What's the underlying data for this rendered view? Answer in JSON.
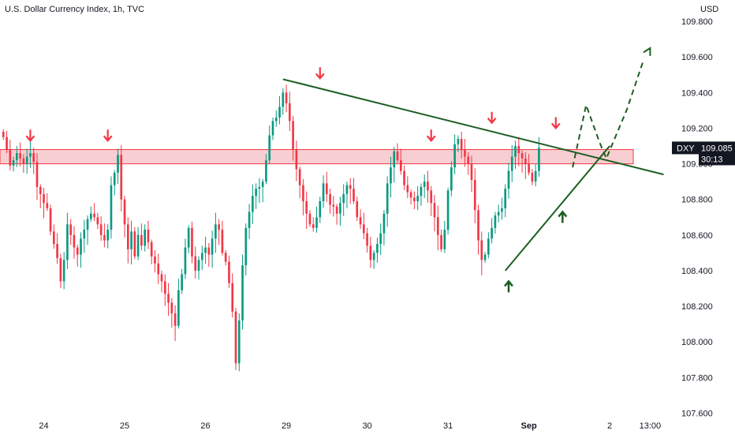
{
  "title": "U.S. Dollar Currency Index, 1h, TVC",
  "chart_data": {
    "type": "candlestick",
    "title": "U.S. Dollar Currency Index, 1h, TVC",
    "ylabel": "USD",
    "ylim": [
      107.58,
      109.92
    ],
    "y_ticks": [
      "109.800",
      "109.600",
      "109.400",
      "109.200",
      "109.000",
      "108.800",
      "108.600",
      "108.400",
      "108.200",
      "108.000",
      "107.800",
      "107.600"
    ],
    "y_tick_values": [
      109.8,
      109.6,
      109.4,
      109.2,
      109.0,
      108.8,
      108.6,
      108.4,
      108.2,
      108.0,
      107.8,
      107.6
    ],
    "x_ticks": [
      {
        "label": "24",
        "i": 12,
        "bold": false
      },
      {
        "label": "25",
        "i": 36,
        "bold": false
      },
      {
        "label": "26",
        "i": 60,
        "bold": false
      },
      {
        "label": "29",
        "i": 84,
        "bold": false
      },
      {
        "label": "30",
        "i": 108,
        "bold": false
      },
      {
        "label": "31",
        "i": 132,
        "bold": false
      },
      {
        "label": "Sep",
        "i": 156,
        "bold": true
      },
      {
        "label": "2",
        "i": 180,
        "bold": false
      },
      {
        "label": "13:00",
        "i": 192,
        "bold": false
      }
    ],
    "x_range": [
      -1,
      198
    ],
    "colors": {
      "up": "#089981",
      "down": "#f23645",
      "trend": "#1b5e20",
      "zone_fill": "#f6c6c9",
      "zone_edge": "#f23645",
      "badge": "#131722",
      "arrow_red": "#f23645",
      "arrow_green": "#1b5e20"
    },
    "closes": [
      109.15,
      109.08,
      108.99,
      109.02,
      109.06,
      109.03,
      109.0,
      109.04,
      109.06,
      109.01,
      108.87,
      108.83,
      108.78,
      108.75,
      108.62,
      108.55,
      108.47,
      108.34,
      108.46,
      108.66,
      108.6,
      108.53,
      108.49,
      108.58,
      108.63,
      108.69,
      108.72,
      108.7,
      108.66,
      108.6,
      108.57,
      108.63,
      108.88,
      108.95,
      109.05,
      108.8,
      108.66,
      108.52,
      108.62,
      108.48,
      108.6,
      108.54,
      108.63,
      108.56,
      108.48,
      108.44,
      108.38,
      108.34,
      108.27,
      108.22,
      108.16,
      108.09,
      108.29,
      108.38,
      108.53,
      108.64,
      108.48,
      108.4,
      108.46,
      108.5,
      108.53,
      108.49,
      108.58,
      108.66,
      108.63,
      108.5,
      108.45,
      108.33,
      108.17,
      107.88,
      108.12,
      108.43,
      108.64,
      108.73,
      108.82,
      108.86,
      108.87,
      108.9,
      109.02,
      109.16,
      109.24,
      109.26,
      109.32,
      109.4,
      109.34,
      109.24,
      109.08,
      108.97,
      108.88,
      108.79,
      108.72,
      108.66,
      108.64,
      108.7,
      108.79,
      108.89,
      108.83,
      108.77,
      108.76,
      108.72,
      108.78,
      108.83,
      108.88,
      108.86,
      108.79,
      108.7,
      108.66,
      108.61,
      108.54,
      108.46,
      108.5,
      108.55,
      108.61,
      108.72,
      108.89,
      108.98,
      109.07,
      109.02,
      108.96,
      108.88,
      108.84,
      108.81,
      108.79,
      108.82,
      108.87,
      108.9,
      108.85,
      108.78,
      108.7,
      108.6,
      108.52,
      108.63,
      108.85,
      108.98,
      109.11,
      109.14,
      109.08,
      109.04,
      109.0,
      108.91,
      108.74,
      108.57,
      108.46,
      108.49,
      108.58,
      108.64,
      108.71,
      108.73,
      108.75,
      108.86,
      108.96,
      109.04,
      109.1,
      109.06,
      109.03,
      109.0,
      108.95,
      108.9,
      108.96,
      109.09
    ],
    "zone": {
      "top": 109.08,
      "bottom": 109.0
    },
    "price_badge": {
      "label": "DXY",
      "price": "109.085",
      "countdown": "30:13",
      "value": 109.085
    },
    "trendlines": [
      {
        "i1": 83,
        "p1": 109.475,
        "i2": 196,
        "p2": 108.94
      },
      {
        "i1": 149,
        "p1": 108.4,
        "i2": 180,
        "p2": 109.1
      }
    ],
    "projection": [
      {
        "i": 169,
        "p": 108.98
      },
      {
        "i": 173,
        "p": 109.33
      },
      {
        "i": 177,
        "p": 109.12
      },
      {
        "i": 179,
        "p": 109.03
      },
      {
        "i": 185,
        "p": 109.3
      },
      {
        "i": 190,
        "p": 109.58
      }
    ],
    "projection_arrow_tip": {
      "i": 192,
      "p": 109.65
    },
    "red_arrows": [
      {
        "i": 8,
        "p": 109.13
      },
      {
        "i": 31,
        "p": 109.13
      },
      {
        "i": 94,
        "p": 109.48
      },
      {
        "i": 127,
        "p": 109.13
      },
      {
        "i": 145,
        "p": 109.23
      },
      {
        "i": 164,
        "p": 109.2
      }
    ],
    "green_arrows": [
      {
        "i": 150,
        "p": 108.34
      },
      {
        "i": 166,
        "p": 108.73
      }
    ]
  }
}
